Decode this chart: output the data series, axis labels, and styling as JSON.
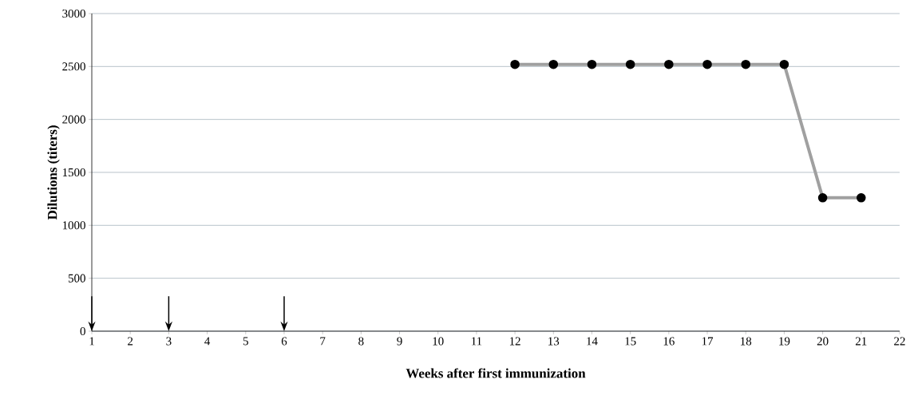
{
  "chart_data": {
    "type": "line",
    "xlabel": "Weeks after first immunization",
    "ylabel": "Dilutions (titers)",
    "x": [
      12,
      13,
      14,
      15,
      16,
      17,
      18,
      19,
      20,
      21
    ],
    "series": [
      {
        "color": "#a0a0a0",
        "values": [
          2520,
          2520,
          2520,
          2520,
          2520,
          2520,
          2520,
          2520,
          1260,
          1260
        ]
      }
    ],
    "marker": "circle",
    "line_style": "solid",
    "grid": "y",
    "xlim": [
      1,
      22
    ],
    "ylim": [
      0,
      3000
    ],
    "xticks": [
      1,
      2,
      3,
      4,
      5,
      6,
      7,
      8,
      9,
      10,
      11,
      12,
      13,
      14,
      15,
      16,
      17,
      18,
      19,
      20,
      21,
      22
    ],
    "yticks": [
      0,
      500,
      1000,
      1500,
      2000,
      2500,
      3000
    ],
    "ref_lines": [
      {
        "axis": "x",
        "value": 1
      },
      {
        "axis": "x",
        "value": 3
      },
      {
        "axis": "x",
        "value": 6
      }
    ]
  }
}
